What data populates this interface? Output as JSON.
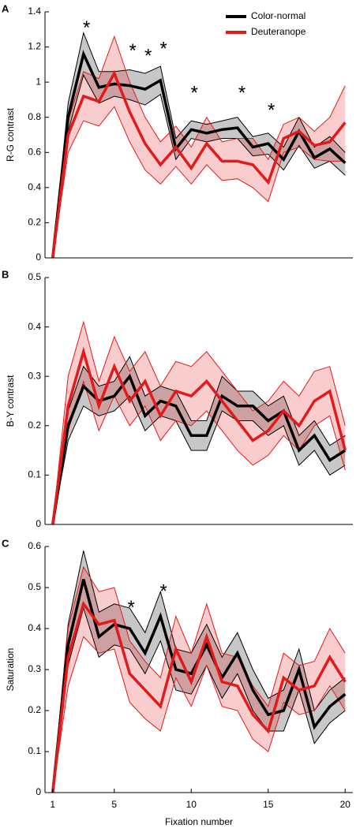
{
  "chart_data": [
    {
      "type": "band-line",
      "panel_label": "A",
      "ylabel": "R-G contrast",
      "x": [
        1,
        2,
        3,
        4,
        5,
        6,
        7,
        8,
        9,
        10,
        11,
        12,
        13,
        14,
        15,
        16,
        17,
        18,
        19,
        20
      ],
      "xlim": [
        0.5,
        20.5
      ],
      "ylim": [
        0,
        1.4
      ],
      "yticks": [
        0,
        0.2,
        0.4,
        0.6,
        0.8,
        1,
        1.2,
        1.4
      ],
      "legend": "upper right",
      "series": [
        {
          "name": "Color-normal",
          "color": "#000000",
          "values": [
            0,
            0.8,
            1.16,
            0.97,
            0.99,
            0.98,
            0.96,
            1.01,
            0.62,
            0.73,
            0.71,
            0.73,
            0.74,
            0.63,
            0.65,
            0.56,
            0.72,
            0.57,
            0.62,
            0.54
          ],
          "upper": [
            0,
            0.88,
            1.28,
            1.06,
            1.06,
            1.07,
            1.05,
            1.09,
            0.68,
            0.78,
            0.76,
            0.78,
            0.8,
            0.69,
            0.71,
            0.63,
            0.8,
            0.63,
            0.69,
            0.6
          ],
          "lower": [
            0,
            0.72,
            1.04,
            0.88,
            0.92,
            0.9,
            0.87,
            0.93,
            0.56,
            0.68,
            0.66,
            0.68,
            0.68,
            0.58,
            0.59,
            0.5,
            0.64,
            0.51,
            0.55,
            0.47
          ]
        },
        {
          "name": "Deuteranope",
          "color": "#e31a1c",
          "values": [
            0,
            0.7,
            0.92,
            0.89,
            1.05,
            0.83,
            0.65,
            0.53,
            0.63,
            0.51,
            0.65,
            0.55,
            0.55,
            0.53,
            0.43,
            0.68,
            0.72,
            0.64,
            0.66,
            0.77
          ],
          "upper": [
            0,
            0.78,
            1.06,
            1.02,
            1.26,
            1.0,
            0.8,
            0.66,
            0.75,
            0.63,
            0.8,
            0.66,
            0.68,
            0.68,
            0.56,
            0.76,
            0.8,
            0.72,
            0.8,
            0.98
          ],
          "lower": [
            0,
            0.6,
            0.78,
            0.75,
            0.86,
            0.66,
            0.5,
            0.42,
            0.52,
            0.42,
            0.53,
            0.44,
            0.45,
            0.4,
            0.32,
            0.6,
            0.63,
            0.56,
            0.55,
            0.55
          ]
        }
      ],
      "annotations": [
        {
          "text": "*",
          "x": 3.2,
          "y": 1.33
        },
        {
          "text": "*",
          "x": 6.2,
          "y": 1.2
        },
        {
          "text": "*",
          "x": 7.2,
          "y": 1.17
        },
        {
          "text": "*",
          "x": 8.2,
          "y": 1.21
        },
        {
          "text": "*",
          "x": 10.2,
          "y": 0.96
        },
        {
          "text": "*",
          "x": 13.3,
          "y": 0.96
        },
        {
          "text": "*",
          "x": 15.2,
          "y": 0.86
        }
      ]
    },
    {
      "type": "band-line",
      "panel_label": "B",
      "ylabel": "B-Y contrast",
      "x": [
        1,
        2,
        3,
        4,
        5,
        6,
        7,
        8,
        9,
        10,
        11,
        12,
        13,
        14,
        15,
        16,
        17,
        18,
        19,
        20
      ],
      "xlim": [
        0.5,
        20.5
      ],
      "ylim": [
        0,
        0.5
      ],
      "yticks": [
        0,
        0.1,
        0.2,
        0.3,
        0.4,
        0.5
      ],
      "series": [
        {
          "color": "#000000",
          "values": [
            0,
            0.2,
            0.28,
            0.25,
            0.26,
            0.3,
            0.22,
            0.25,
            0.24,
            0.18,
            0.18,
            0.26,
            0.24,
            0.24,
            0.21,
            0.23,
            0.15,
            0.18,
            0.13,
            0.15
          ],
          "upper": [
            0,
            0.23,
            0.32,
            0.28,
            0.29,
            0.34,
            0.26,
            0.28,
            0.27,
            0.21,
            0.21,
            0.3,
            0.27,
            0.27,
            0.24,
            0.26,
            0.18,
            0.21,
            0.16,
            0.18
          ],
          "lower": [
            0,
            0.17,
            0.24,
            0.22,
            0.23,
            0.26,
            0.19,
            0.22,
            0.21,
            0.15,
            0.15,
            0.23,
            0.21,
            0.21,
            0.18,
            0.2,
            0.12,
            0.15,
            0.1,
            0.12
          ]
        },
        {
          "color": "#e31a1c",
          "values": [
            0,
            0.24,
            0.35,
            0.24,
            0.32,
            0.25,
            0.29,
            0.22,
            0.27,
            0.26,
            0.29,
            0.25,
            0.21,
            0.17,
            0.19,
            0.23,
            0.2,
            0.25,
            0.27,
            0.15
          ],
          "upper": [
            0,
            0.3,
            0.41,
            0.29,
            0.38,
            0.31,
            0.35,
            0.28,
            0.33,
            0.32,
            0.35,
            0.31,
            0.27,
            0.23,
            0.25,
            0.29,
            0.26,
            0.31,
            0.32,
            0.2
          ],
          "lower": [
            0,
            0.19,
            0.29,
            0.19,
            0.26,
            0.2,
            0.24,
            0.17,
            0.21,
            0.2,
            0.23,
            0.19,
            0.15,
            0.12,
            0.14,
            0.18,
            0.15,
            0.2,
            0.22,
            0.11
          ]
        }
      ]
    },
    {
      "type": "band-line",
      "panel_label": "C",
      "ylabel": "Saturation",
      "xlabel": "Fixation number",
      "x": [
        1,
        2,
        3,
        4,
        5,
        6,
        7,
        8,
        9,
        10,
        11,
        12,
        13,
        14,
        15,
        16,
        17,
        18,
        19,
        20
      ],
      "xlim": [
        0.5,
        20.5
      ],
      "ylim": [
        0,
        0.6
      ],
      "xticks": [
        1,
        5,
        10,
        15,
        20
      ],
      "yticks": [
        0,
        0.1,
        0.2,
        0.3,
        0.4,
        0.5,
        0.6
      ],
      "series": [
        {
          "color": "#000000",
          "values": [
            0,
            0.36,
            0.52,
            0.38,
            0.41,
            0.4,
            0.34,
            0.43,
            0.3,
            0.29,
            0.36,
            0.28,
            0.34,
            0.25,
            0.19,
            0.2,
            0.3,
            0.16,
            0.21,
            0.24
          ],
          "upper": [
            0,
            0.41,
            0.59,
            0.44,
            0.46,
            0.45,
            0.39,
            0.49,
            0.35,
            0.34,
            0.41,
            0.33,
            0.39,
            0.3,
            0.23,
            0.25,
            0.35,
            0.2,
            0.25,
            0.28
          ],
          "lower": [
            0,
            0.31,
            0.45,
            0.33,
            0.36,
            0.35,
            0.29,
            0.37,
            0.25,
            0.24,
            0.31,
            0.23,
            0.29,
            0.2,
            0.15,
            0.15,
            0.25,
            0.12,
            0.17,
            0.2
          ]
        },
        {
          "color": "#e31a1c",
          "values": [
            0,
            0.33,
            0.46,
            0.41,
            0.42,
            0.29,
            0.25,
            0.21,
            0.35,
            0.27,
            0.38,
            0.27,
            0.26,
            0.19,
            0.15,
            0.28,
            0.25,
            0.26,
            0.33,
            0.27
          ],
          "upper": [
            0,
            0.4,
            0.55,
            0.49,
            0.5,
            0.37,
            0.32,
            0.28,
            0.43,
            0.34,
            0.46,
            0.34,
            0.33,
            0.26,
            0.21,
            0.34,
            0.31,
            0.32,
            0.4,
            0.34
          ],
          "lower": [
            0,
            0.26,
            0.38,
            0.34,
            0.35,
            0.22,
            0.18,
            0.15,
            0.28,
            0.21,
            0.31,
            0.21,
            0.2,
            0.13,
            0.1,
            0.22,
            0.19,
            0.2,
            0.26,
            0.2
          ]
        }
      ],
      "annotations": [
        {
          "text": "*",
          "x": 6.1,
          "y": 0.46
        },
        {
          "text": "*",
          "x": 8.2,
          "y": 0.5
        }
      ]
    }
  ]
}
